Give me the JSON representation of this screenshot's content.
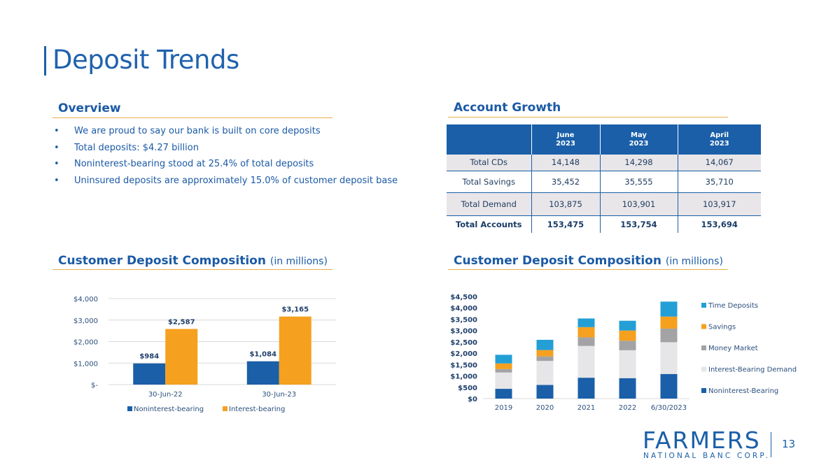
{
  "page": {
    "title": "Deposit Trends",
    "page_number": "13"
  },
  "overview": {
    "heading": "Overview",
    "bullets": [
      "We are proud to say our bank is built on core deposits",
      "Total deposits: $4.27 billion",
      "Noninterest-bearing stood at 25.4% of total deposits",
      "Uninsured deposits are approximately 15.0% of customer deposit base"
    ]
  },
  "account_growth": {
    "heading": "Account Growth",
    "columns": [
      {
        "month": "June",
        "year": "2023"
      },
      {
        "month": "May",
        "year": "2023"
      },
      {
        "month": "April",
        "year": "2023"
      }
    ],
    "rows": [
      {
        "label": "Total CDs",
        "values": [
          "14,148",
          "14,298",
          "14,067"
        ]
      },
      {
        "label": "Total Savings",
        "values": [
          "35,452",
          "35,555",
          "35,710"
        ]
      },
      {
        "label": "Total Demand",
        "values": [
          "103,875",
          "103,901",
          "103,917"
        ]
      },
      {
        "label": "Total Accounts",
        "values": [
          "153,475",
          "153,754",
          "153,694"
        ]
      }
    ]
  },
  "composition_left": {
    "heading": "Customer Deposit Composition",
    "subheading": "(in millions)"
  },
  "composition_right": {
    "heading": "Customer Deposit Composition",
    "subheading": "(in millions)"
  },
  "logo": {
    "wordmark": "FARMERS",
    "subtitle": "NATIONAL BANC CORP."
  },
  "colors": {
    "brand_blue": "#1a5fa8",
    "gold": "#e6b04a",
    "orange": "#f5a01f",
    "light_blue": "#239fd6",
    "gray": "#a3a3a5",
    "light_gray": "#e6e5e7"
  },
  "chart_data": [
    {
      "type": "bar",
      "title": "Customer Deposit Composition (in millions)",
      "categories": [
        "30-Jun-22",
        "30-Jun-23"
      ],
      "series": [
        {
          "name": "Noninterest-bearing",
          "values": [
            984,
            1084
          ],
          "labels": [
            "$984",
            "$1,084"
          ],
          "color": "#1a5fa8"
        },
        {
          "name": "Interest-bearing",
          "values": [
            2587,
            3165
          ],
          "labels": [
            "$2,587",
            "$3,165"
          ],
          "color": "#f5a01f"
        }
      ],
      "ylim": [
        0,
        4000
      ],
      "yticks": [
        0,
        1000,
        2000,
        3000,
        4000
      ],
      "ytick_labels": [
        "$-",
        "$1,000",
        "$2,000",
        "$3,000",
        "$4,000"
      ],
      "legend": "bottom",
      "grid": true
    },
    {
      "type": "bar",
      "stacked": true,
      "title": "Customer Deposit Composition (in millions)",
      "categories": [
        "2019",
        "2020",
        "2021",
        "2022",
        "6/30/2023"
      ],
      "series": [
        {
          "name": "Noninterest-Bearing",
          "values": [
            430,
            600,
            920,
            900,
            1084
          ],
          "color": "#1a5fa8"
        },
        {
          "name": "Interest-Bearing Demand",
          "values": [
            720,
            1060,
            1400,
            1230,
            1400
          ],
          "color": "#e6e5e7"
        },
        {
          "name": "Money Market",
          "values": [
            150,
            200,
            380,
            420,
            600
          ],
          "color": "#a3a3a5"
        },
        {
          "name": "Savings",
          "values": [
            250,
            280,
            450,
            450,
            530
          ],
          "color": "#f5a01f"
        },
        {
          "name": "Time Deposits",
          "values": [
            380,
            450,
            380,
            430,
            660
          ],
          "color": "#239fd6"
        }
      ],
      "ylim": [
        0,
        4500
      ],
      "yticks": [
        0,
        500,
        1000,
        1500,
        2000,
        2500,
        3000,
        3500,
        4000,
        4500
      ],
      "ytick_labels": [
        "$0",
        "$500",
        "$1,000",
        "$1,500",
        "$2,000",
        "$2,500",
        "$3,000",
        "$3,500",
        "$4,000",
        "$4,500"
      ],
      "legend": "right"
    }
  ]
}
